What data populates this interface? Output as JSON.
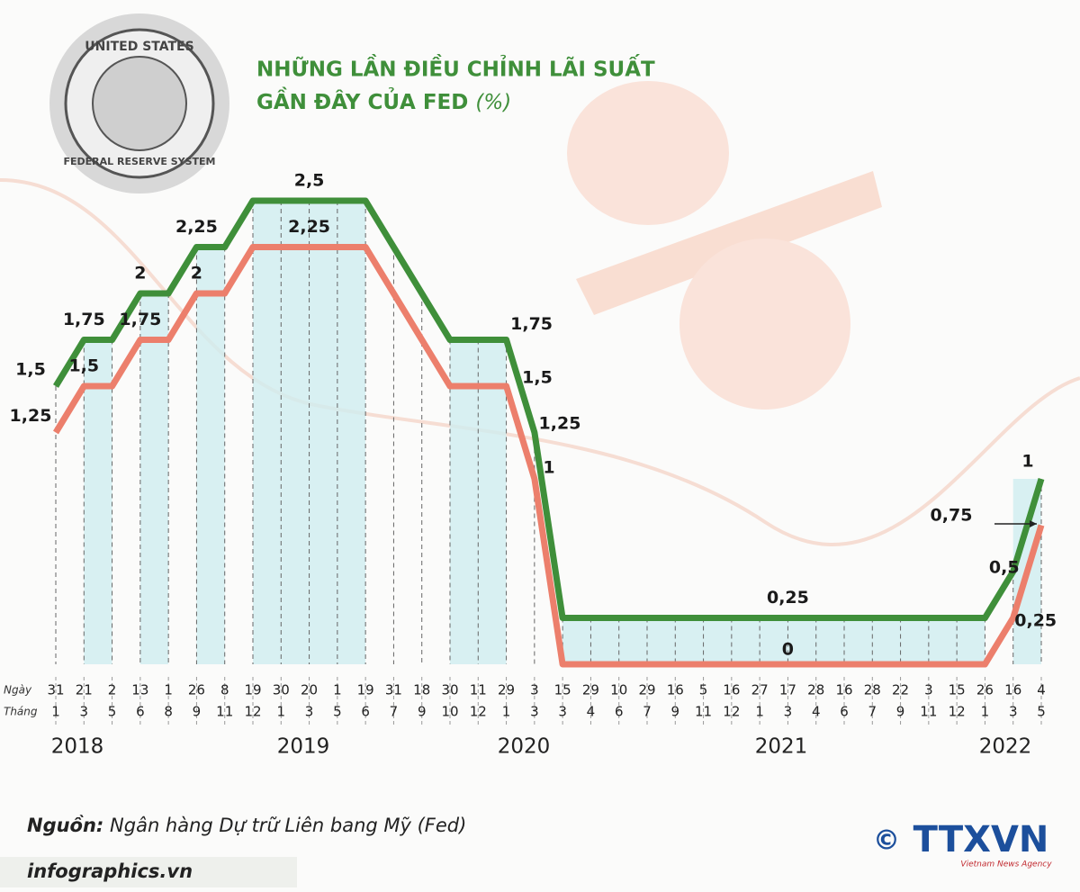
{
  "chart_data": {
    "type": "line",
    "title": [
      "NHỮNG LẦN ĐIỀU CHỈNH LÃI SUẤT",
      "GẦN ĐÂY CỦA FED"
    ],
    "unit": "(%)",
    "row_labels": {
      "day": "Ngày",
      "month": "Tháng"
    },
    "categories": [
      {
        "day": 31,
        "month": 1
      },
      {
        "day": 21,
        "month": 3
      },
      {
        "day": 2,
        "month": 5
      },
      {
        "day": 13,
        "month": 6
      },
      {
        "day": 1,
        "month": 8
      },
      {
        "day": 26,
        "month": 9
      },
      {
        "day": 8,
        "month": 11
      },
      {
        "day": 19,
        "month": 12
      },
      {
        "day": 30,
        "month": 1
      },
      {
        "day": 20,
        "month": 3
      },
      {
        "day": 1,
        "month": 5
      },
      {
        "day": 19,
        "month": 6
      },
      {
        "day": 31,
        "month": 7
      },
      {
        "day": 18,
        "month": 9
      },
      {
        "day": 30,
        "month": 10
      },
      {
        "day": 11,
        "month": 12
      },
      {
        "day": 29,
        "month": 1
      },
      {
        "day": 3,
        "month": 3
      },
      {
        "day": 15,
        "month": 3
      },
      {
        "day": 29,
        "month": 4
      },
      {
        "day": 10,
        "month": 6
      },
      {
        "day": 29,
        "month": 7
      },
      {
        "day": 16,
        "month": 9
      },
      {
        "day": 5,
        "month": 11
      },
      {
        "day": 16,
        "month": 12
      },
      {
        "day": 27,
        "month": 1
      },
      {
        "day": 17,
        "month": 3
      },
      {
        "day": 28,
        "month": 4
      },
      {
        "day": 16,
        "month": 6
      },
      {
        "day": 28,
        "month": 7
      },
      {
        "day": 22,
        "month": 9
      },
      {
        "day": 3,
        "month": 11
      },
      {
        "day": 15,
        "month": 12
      },
      {
        "day": 26,
        "month": 1
      },
      {
        "day": 16,
        "month": 3
      },
      {
        "day": 4,
        "month": 5
      }
    ],
    "years": [
      2018,
      2019,
      2020,
      2021,
      2022
    ],
    "series": [
      {
        "color": "#3f8f3a",
        "values": [
          1.5,
          1.75,
          1.75,
          2,
          2,
          2.25,
          2.25,
          2.5,
          2.5,
          2.5,
          2.5,
          2.5,
          2.25,
          2,
          1.75,
          1.75,
          1.75,
          1.25,
          0.25,
          0.25,
          0.25,
          0.25,
          0.25,
          0.25,
          0.25,
          0.25,
          0.25,
          0.25,
          0.25,
          0.25,
          0.25,
          0.25,
          0.25,
          0.25,
          0.5,
          1
        ],
        "value_labels": [
          "1,5",
          "1,75",
          null,
          "2",
          null,
          "2,25",
          null,
          null,
          null,
          "2,5",
          null,
          null,
          null,
          null,
          null,
          null,
          "1,75",
          null,
          null,
          null,
          null,
          null,
          null,
          null,
          null,
          null,
          "0,25",
          null,
          null,
          null,
          null,
          null,
          null,
          null,
          "0,5",
          "1"
        ]
      },
      {
        "color": "#ec7f6c",
        "values": [
          1.25,
          1.5,
          1.5,
          1.75,
          1.75,
          2,
          2,
          2.25,
          2.25,
          2.25,
          2.25,
          2.25,
          2,
          1.75,
          1.5,
          1.5,
          1.5,
          1,
          0,
          0,
          0,
          0,
          0,
          0,
          0,
          0,
          0,
          0,
          0,
          0,
          0,
          0,
          0,
          0,
          0.25,
          0.75
        ],
        "value_labels": [
          "1,25",
          "1,5",
          null,
          "1,75",
          null,
          "2",
          null,
          null,
          null,
          "2,25",
          null,
          null,
          null,
          null,
          null,
          null,
          null,
          null,
          null,
          null,
          null,
          null,
          null,
          null,
          null,
          null,
          "0",
          null,
          null,
          null,
          null,
          null,
          null,
          null,
          "0,25",
          "0,75"
        ]
      }
    ],
    "annotations": [
      "1,5",
      "1,25",
      "1"
    ],
    "source_label": "Nguồn:",
    "source": "Ngân hàng Dự trữ Liên bang Mỹ (Fed)",
    "website": "infographics.vn",
    "seal": {
      "top": "UNITED STATES",
      "bottom": "FEDERAL RESERVE SYSTEM"
    },
    "agency": {
      "copyright": "©",
      "name": "TTXVN",
      "english": "Vietnam News Agency"
    }
  }
}
